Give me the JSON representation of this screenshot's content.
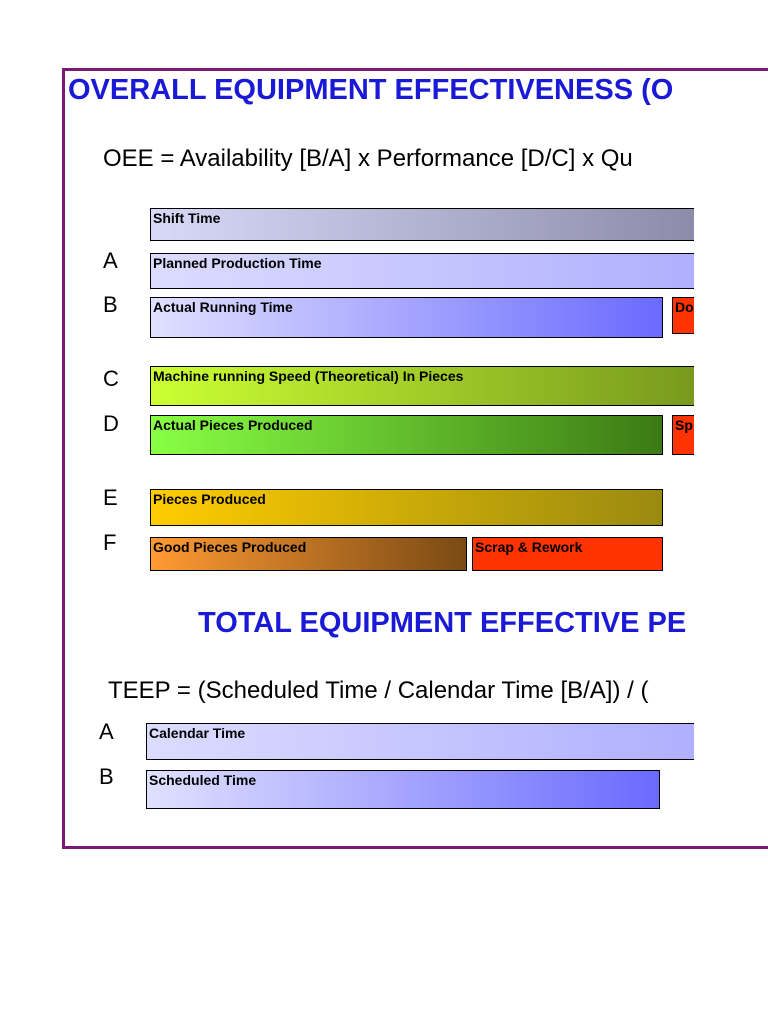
{
  "oee": {
    "title": "OVERALL EQUIPMENT EFFECTIVENESS (O",
    "formula": "OEE = Availability [B/A] x Performance [D/C] x Qu",
    "rows": {
      "A": "A",
      "B": "B",
      "C": "C",
      "D": "D",
      "E": "E",
      "F": "F"
    },
    "bars": {
      "shift_time": "Shift Time",
      "planned_production_time": "Planned Production Time",
      "actual_running_time": "Actual Running Time",
      "downtime_partial": "Do",
      "theoretical_speed": "Machine running Speed (Theoretical) In Pieces",
      "actual_pieces": "Actual Pieces Produced",
      "speed_loss_partial": "Sp",
      "pieces_produced": "Pieces Produced",
      "good_pieces": "Good Pieces Produced",
      "scrap_rework": "Scrap & Rework"
    }
  },
  "teep": {
    "title": "TOTAL EQUIPMENT EFFECTIVE PE",
    "formula": "TEEP = (Scheduled Time / Calendar Time [B/A]) / (",
    "rows": {
      "A": "A",
      "B": "B"
    },
    "bars": {
      "calendar_time": "Calendar Time",
      "scheduled_time": "Scheduled Time"
    }
  },
  "colors": {
    "frame": "#7b1a7b",
    "title": "#1a1ad6",
    "loss": "#ff3300"
  }
}
